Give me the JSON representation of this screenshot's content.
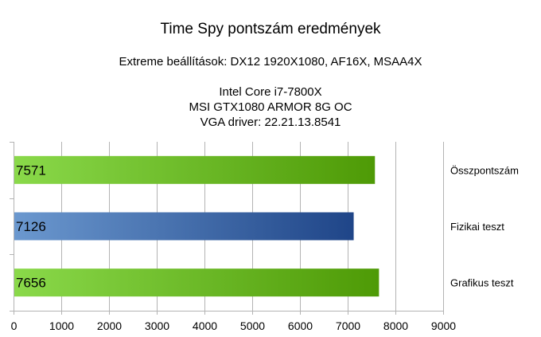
{
  "chart_data": {
    "type": "bar",
    "orientation": "horizontal",
    "title": "Time Spy pontszám eredmények",
    "subtitle": "Extreme beállítások: DX12 1920X1080, AF16X, MSAA4X",
    "info_lines": [
      "Intel Core i7-7800X",
      "MSI GTX1080 ARMOR 8G OC",
      "VGA driver: 22.21.13.8541"
    ],
    "categories": [
      "Összpontszám",
      "Fizikai teszt",
      "Grafikus teszt"
    ],
    "values": [
      7571,
      7126,
      7656
    ],
    "value_labels": [
      "7571",
      "7126",
      "7656"
    ],
    "bar_colors": [
      [
        "#8ad94a",
        "#4e9a06"
      ],
      [
        "#6b98cf",
        "#1f4588"
      ],
      [
        "#8ad94a",
        "#4e9a06"
      ]
    ],
    "xlim": [
      0,
      9000
    ],
    "xticks": [
      0,
      1000,
      2000,
      3000,
      4000,
      5000,
      6000,
      7000,
      8000,
      9000
    ],
    "xtick_labels": [
      "0",
      "1000",
      "2000",
      "3000",
      "4000",
      "5000",
      "6000",
      "7000",
      "8000",
      "9000"
    ],
    "grid": "vertical",
    "grid_color": "#b3b3b3"
  }
}
